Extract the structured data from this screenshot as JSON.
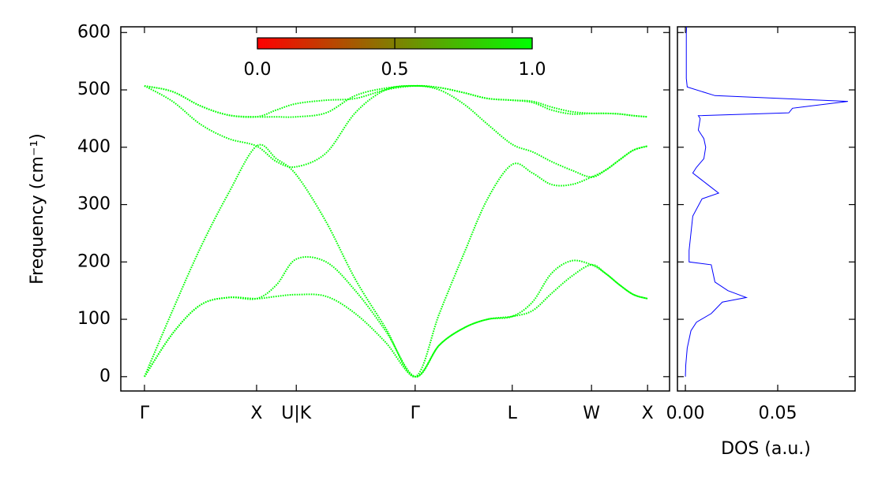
{
  "chart_data": [
    {
      "type": "line",
      "ylabel": "Frequency (cm⁻¹)",
      "x": [
        0,
        0.25,
        0.5,
        0.75,
        1.0,
        1.177,
        1.354,
        1.62,
        1.88,
        2.15,
        2.414,
        2.63,
        2.85,
        3.06,
        3.28,
        3.46,
        3.63,
        3.81,
        3.987,
        4.112,
        4.237,
        4.362,
        4.487
      ],
      "series": [
        {
          "color": "#00ff00",
          "values": [
            0,
            75,
            125,
            138,
            136,
            160,
            205,
            200,
            150,
            80,
            0,
            55,
            85,
            100,
            105,
            130,
            180,
            202,
            195,
            180,
            160,
            143,
            136
          ]
        },
        {
          "color": "#00ff00",
          "values": [
            0,
            75,
            125,
            138,
            136,
            140,
            143,
            140,
            110,
            60,
            0,
            55,
            85,
            100,
            105,
            115,
            145,
            175,
            195,
            180,
            160,
            143,
            136
          ]
        },
        {
          "color": "#00ff00",
          "values": [
            0,
            115,
            225,
            320,
            402,
            380,
            352,
            270,
            170,
            85,
            0,
            110,
            215,
            310,
            370,
            355,
            335,
            335,
            348,
            360,
            378,
            395,
            402
          ]
        },
        {
          "color": "#00ff00",
          "values": [
            507,
            480,
            440,
            415,
            402,
            375,
            366,
            390,
            460,
            500,
            507,
            500,
            475,
            440,
            405,
            392,
            375,
            360,
            348,
            360,
            378,
            395,
            402
          ]
        },
        {
          "color": "#00ff00",
          "values": [
            507,
            497,
            472,
            456,
            453,
            465,
            476,
            482,
            485,
            500,
            507,
            504,
            495,
            485,
            482,
            480,
            470,
            462,
            459,
            459,
            458,
            455,
            453
          ]
        },
        {
          "color": "#00ff00",
          "values": [
            507,
            497,
            472,
            456,
            453,
            453,
            453,
            460,
            490,
            503,
            507,
            504,
            495,
            485,
            482,
            478,
            465,
            458,
            459,
            459,
            458,
            455,
            453
          ]
        }
      ],
      "xlim": [
        -0.211,
        4.683
      ],
      "xticks": [
        {
          "value": 0,
          "label": "Γ"
        },
        {
          "value": 1.0,
          "label": "X"
        },
        {
          "value": 1.354,
          "label": "U|K"
        },
        {
          "value": 2.414,
          "label": "Γ"
        },
        {
          "value": 3.28,
          "label": "L"
        },
        {
          "value": 3.987,
          "label": "W"
        },
        {
          "value": 4.487,
          "label": "X"
        }
      ],
      "ylim": [
        -25,
        610
      ],
      "yticks": [
        0,
        100,
        200,
        300,
        400,
        500,
        600
      ],
      "colorbar": {
        "colors": [
          "#ff0000",
          "#00ff00"
        ],
        "lim": [
          0,
          1
        ],
        "ticks": [
          {
            "value": 0,
            "label": "0.0"
          },
          {
            "value": 0.5,
            "label": "0.5"
          },
          {
            "value": 1,
            "label": "1.0"
          }
        ]
      }
    },
    {
      "type": "dos",
      "xlabel": "DOS (a.u.)",
      "color": "#0000ff",
      "frequency": [
        0,
        20,
        50,
        80,
        95,
        110,
        130,
        138,
        150,
        165,
        180,
        195,
        200,
        220,
        280,
        310,
        320,
        335,
        355,
        365,
        380,
        400,
        415,
        430,
        450,
        455,
        460,
        468,
        480,
        490,
        505,
        520,
        600,
        610
      ],
      "values": [
        0,
        0.0002,
        0.001,
        0.003,
        0.006,
        0.014,
        0.02,
        0.033,
        0.023,
        0.016,
        0.015,
        0.014,
        0.002,
        0.002,
        0.004,
        0.009,
        0.018,
        0.012,
        0.004,
        0.006,
        0.01,
        0.011,
        0.01,
        0.007,
        0.008,
        0.007,
        0.056,
        0.058,
        0.088,
        0.016,
        0.001,
        0.0005,
        0.0005,
        0.0007
      ],
      "xlim": [
        -0.0043,
        0.0919
      ],
      "xticks": [
        {
          "value": 0,
          "label": "0.00"
        },
        {
          "value": 0.05,
          "label": "0.05"
        }
      ]
    }
  ]
}
